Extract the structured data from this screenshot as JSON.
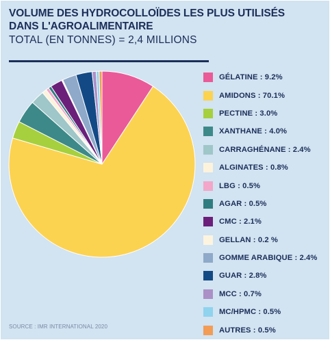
{
  "chart_data": {
    "type": "pie",
    "title": "VOLUME DES HYDROCOLLOÏDES LES PLUS UTILISÉS DANS L'AGROALIMENTAIRE",
    "subtitle": "TOTAL (EN TONNES) = 2,4 MILLIONS",
    "source": "SOURCE : IMR INTERNATIONAL 2020",
    "legend_position": "right",
    "slices": [
      {
        "label": "GÉLATINE : 9.2%",
        "value": 9.2,
        "color": "#ea5a98"
      },
      {
        "label": "AMIDONS : 70.1%",
        "value": 70.1,
        "color": "#fcd251"
      },
      {
        "label": "PECTINE : 3.0%",
        "value": 3.0,
        "color": "#a6d03d"
      },
      {
        "label": "XANTHANE : 4.0%",
        "value": 4.0,
        "color": "#3d8989"
      },
      {
        "label": "CARRAGHÉNANE : 2.4%",
        "value": 2.4,
        "color": "#9fc6c8"
      },
      {
        "label": "ALGINATES : 0.8%",
        "value": 0.8,
        "color": "#fdf3dc"
      },
      {
        "label": "LBG : 0.5%",
        "value": 0.5,
        "color": "#f3a6c9"
      },
      {
        "label": "AGAR : 0.5%",
        "value": 0.5,
        "color": "#2f7d80"
      },
      {
        "label": "CMC : 2.1%",
        "value": 2.1,
        "color": "#6b1f7a"
      },
      {
        "label": "GELLAN : 0.2 %",
        "value": 0.2,
        "color": "#fdf4e0"
      },
      {
        "label": "GOMME ARABIQUE : 2.4%",
        "value": 2.4,
        "color": "#8ea9c9"
      },
      {
        "label": "GUAR : 2.8%",
        "value": 2.8,
        "color": "#134a86"
      },
      {
        "label": "MCC : 0.7%",
        "value": 0.7,
        "color": "#ab90c8"
      },
      {
        "label": "MC/HPMC : 0.5%",
        "value": 0.5,
        "color": "#8fd3ee"
      },
      {
        "label": "AUTRES : 0.5%",
        "value": 0.5,
        "color": "#f29c56"
      }
    ]
  }
}
